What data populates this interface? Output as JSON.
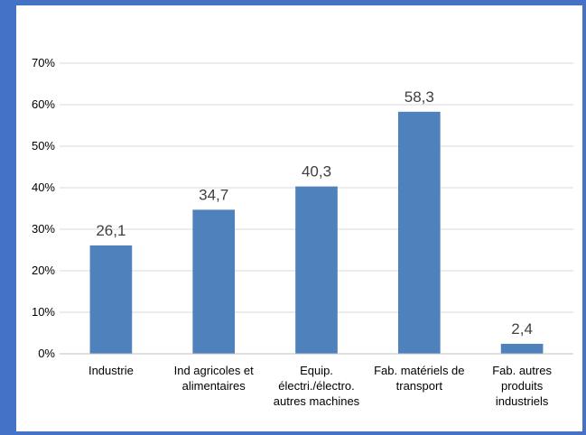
{
  "colors": {
    "frame": "#4472c4",
    "background": "#ffffff",
    "bar": "#4f81bd",
    "grid": "#d9d9d9",
    "axis": "#bfbfbf",
    "data_label": "#404040"
  },
  "chart_data": {
    "type": "bar",
    "title": "",
    "xlabel": "",
    "ylabel": "",
    "categories": [
      [
        "Industrie"
      ],
      [
        "Ind agricoles et",
        "alimentaires"
      ],
      [
        "Equip.",
        "électri./électro.",
        "autres machines"
      ],
      [
        "Fab. matériels de",
        "transport"
      ],
      [
        "Fab. autres",
        "produits",
        "industriels"
      ]
    ],
    "values": [
      26.1,
      34.7,
      40.3,
      58.3,
      2.4
    ],
    "data_labels": [
      "26,1",
      "34,7",
      "40,3",
      "58,3",
      "2,4"
    ],
    "ylim": [
      0,
      70
    ],
    "y_ticks": [
      0,
      10,
      20,
      30,
      40,
      50,
      60,
      70
    ],
    "y_tick_labels": [
      "0%",
      "10%",
      "20%",
      "30%",
      "40%",
      "50%",
      "60%",
      "70%"
    ],
    "grid": true,
    "legend": "none"
  }
}
